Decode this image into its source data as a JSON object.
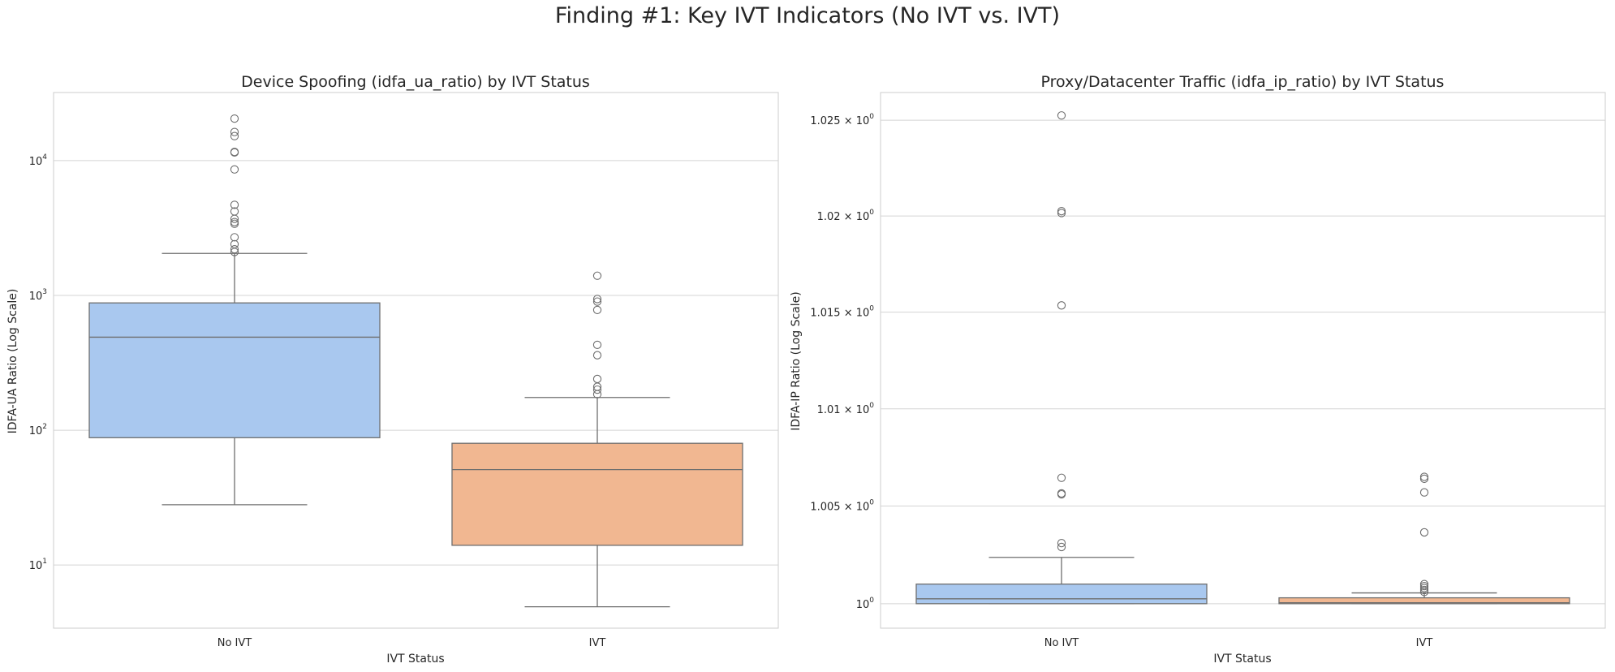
{
  "suptitle": "Finding #1: Key IVT Indicators (No IVT vs. IVT)",
  "colors": {
    "no_ivt": "#a9c8ef",
    "ivt": "#f1b791",
    "grid": "#d4d4d4",
    "line": "#6e6e6e",
    "frame": "#cccccc"
  },
  "chart_data": [
    {
      "type": "box",
      "title": "Device Spoofing (idfa_ua_ratio) by IVT Status",
      "xlabel": "IVT Status",
      "ylabel": "IDFA-UA Ratio (Log Scale)",
      "yscale": "log",
      "ylim": [
        3.4,
        32000
      ],
      "yticks": [
        10,
        100,
        1000,
        10000
      ],
      "ytick_labels": [
        {
          "base": "10",
          "exp": "1"
        },
        {
          "base": "10",
          "exp": "2"
        },
        {
          "base": "10",
          "exp": "3"
        },
        {
          "base": "10",
          "exp": "4"
        }
      ],
      "grid": true,
      "categories": [
        "No IVT",
        "IVT"
      ],
      "boxes": [
        {
          "category": "No IVT",
          "whisker_low": 28,
          "q1": 88,
          "median": 490,
          "q3": 880,
          "whisker_high": 2050,
          "outliers": [
            20500,
            16300,
            15200,
            11600,
            11500,
            8600,
            4700,
            4200,
            3700,
            3500,
            3400,
            2700,
            2400,
            2200,
            2100
          ]
        },
        {
          "category": "IVT",
          "whisker_low": 4.9,
          "q1": 14,
          "median": 51,
          "q3": 80,
          "whisker_high": 175,
          "outliers": [
            1400,
            940,
            900,
            780,
            430,
            360,
            240,
            210,
            200,
            185
          ]
        }
      ]
    },
    {
      "type": "box",
      "title": "Proxy/Datacenter Traffic (idfa_ip_ratio) by IVT Status",
      "xlabel": "IVT Status",
      "ylabel": "IDFA-IP Ratio (Log Scale)",
      "yscale": "log",
      "ylim": [
        0.99875,
        1.02645
      ],
      "yticks": [
        1.0,
        1.005,
        1.01,
        1.015,
        1.02,
        1.025
      ],
      "ytick_labels": [
        {
          "base": "10",
          "exp": "0"
        },
        {
          "base": "1.005 × 10",
          "exp": "0"
        },
        {
          "base": "1.01 × 10",
          "exp": "0"
        },
        {
          "base": "1.015 × 10",
          "exp": "0"
        },
        {
          "base": "1.02 × 10",
          "exp": "0"
        },
        {
          "base": "1.025 × 10",
          "exp": "0"
        }
      ],
      "grid": true,
      "categories": [
        "No IVT",
        "IVT"
      ],
      "boxes": [
        {
          "category": "No IVT",
          "whisker_low": 1.0,
          "q1": 1.0,
          "median": 1.00025,
          "q3": 1.001,
          "whisker_high": 1.00237,
          "outliers": [
            1.02525,
            1.02025,
            1.02015,
            1.01535,
            1.00645,
            1.00565,
            1.0056,
            1.0031,
            1.0029
          ]
        },
        {
          "category": "IVT",
          "whisker_low": 1.0,
          "q1": 1.0,
          "median": 1.00005,
          "q3": 1.0003,
          "whisker_high": 1.00055,
          "outliers": [
            1.0065,
            1.0064,
            1.0057,
            1.00365,
            1.001,
            1.0009,
            1.0008,
            1.0007,
            1.0006
          ]
        }
      ]
    }
  ]
}
